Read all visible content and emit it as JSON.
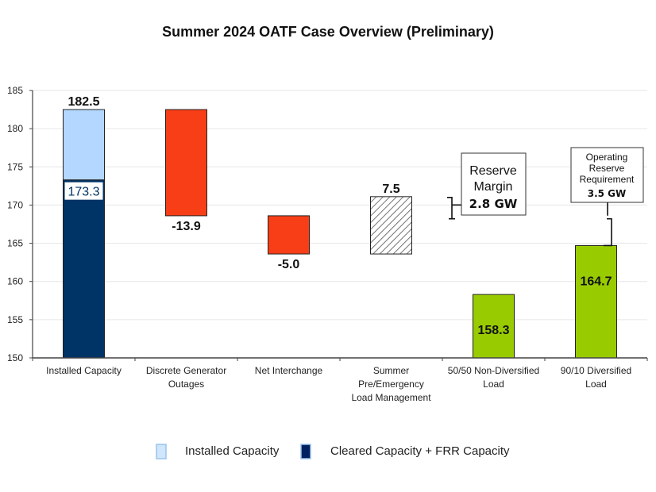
{
  "chart_data": {
    "type": "bar",
    "subtype": "waterfall",
    "title": "Summer 2024 OATF Case Overview (Preliminary)",
    "xlabel": "",
    "ylabel": "",
    "ylim": [
      150,
      185
    ],
    "yticks": [
      150,
      155,
      160,
      165,
      170,
      175,
      180,
      185
    ],
    "grid": true,
    "categories": [
      "Installed Capacity",
      "Discrete Generator Outages",
      "Net Interchange",
      "Summer Pre/Emergency Load Management",
      "50/50 Non-Diversified Load",
      "90/10 Diversified Load"
    ],
    "category_lines": [
      [
        "Installed Capacity"
      ],
      [
        "Discrete Generator",
        "Outages"
      ],
      [
        "Net Interchange"
      ],
      [
        "Summer",
        "Pre/Emergency",
        "Load Management"
      ],
      [
        "50/50 Non-Diversified",
        "Load"
      ],
      [
        "90/10 Diversified",
        "Load"
      ]
    ],
    "bars": [
      {
        "category": "Installed Capacity",
        "kind": "stack",
        "segments": [
          {
            "series": "Cleared Capacity + FRR Capacity",
            "from": 150,
            "to": 173.3,
            "color": "#003366"
          },
          {
            "series": "Installed Capacity",
            "from": 173.3,
            "to": 182.5,
            "color": "#b3d7ff"
          }
        ],
        "labels": [
          "182.5",
          "173.3"
        ]
      },
      {
        "category": "Discrete Generator Outages",
        "kind": "decrease",
        "from": 182.5,
        "to": 168.6,
        "value": -13.9,
        "label": "-13.9",
        "color": "#f73e16"
      },
      {
        "category": "Net Interchange",
        "kind": "decrease",
        "from": 168.6,
        "to": 163.6,
        "value": -5.0,
        "label": "-5.0",
        "color": "#f73e16"
      },
      {
        "category": "Summer Pre/Emergency Load Management",
        "kind": "increase-hatched",
        "from": 163.6,
        "to": 171.1,
        "value": 7.5,
        "label": "7.5",
        "color": "#ffffff"
      },
      {
        "category": "50/50 Non-Diversified Load",
        "kind": "total",
        "from": 150,
        "to": 158.3,
        "value": 158.3,
        "label": "158.3",
        "color": "#99cc00"
      },
      {
        "category": "90/10 Diversified Load",
        "kind": "total",
        "from": 150,
        "to": 164.7,
        "value": 164.7,
        "label": "164.7",
        "color": "#99cc00"
      }
    ],
    "reference_line": {
      "value": 168.2,
      "style": "dashed",
      "color": "#000000"
    },
    "annotations": [
      {
        "name": "reserve-margin",
        "lines": [
          "Reserve",
          "Margin"
        ],
        "value_text": "2.8 GW",
        "bracket": [
          168.2,
          171.0
        ]
      },
      {
        "name": "operating-reserve-requirement",
        "lines": [
          "Operating",
          "Reserve",
          "Requirement"
        ],
        "value_text": "3.5 GW",
        "bracket": [
          164.7,
          168.2
        ]
      }
    ],
    "legend": {
      "position": "bottom",
      "entries": [
        {
          "label": "Installed Capacity",
          "color": "#cfe6fb"
        },
        {
          "label": "Cleared Capacity + FRR Capacity",
          "color": "#002060"
        }
      ]
    }
  }
}
